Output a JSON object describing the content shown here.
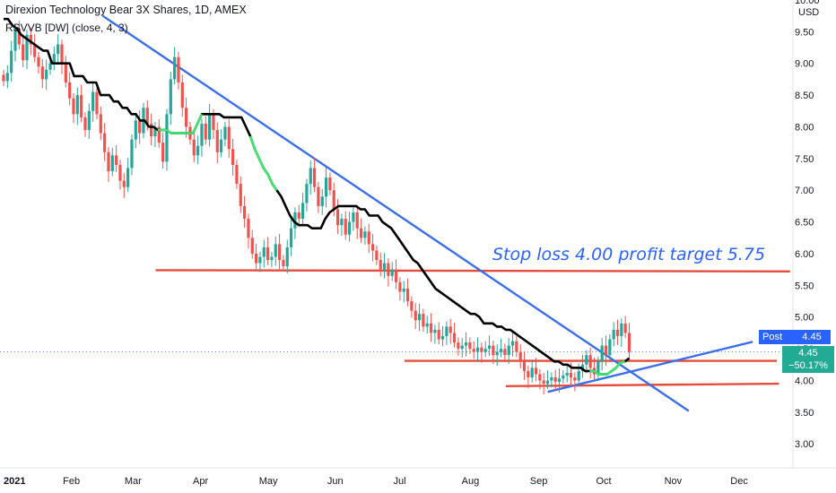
{
  "header": {
    "title": "Direxion Technology Bear 3X Shares, 1D, AMEX",
    "indicator": "RSVVB [DW] (close, 4, 3)",
    "currency_line1": "USD"
  },
  "annotation": "Stop loss 4.00 profit target 5.75",
  "badges": {
    "post_label": "Post",
    "post_value": "4.45",
    "last_value": "4.45",
    "last_change": "−50.17%"
  },
  "colors": {
    "up": "#26a69a",
    "down": "#ef5350",
    "trend_line": "#3a6ee8",
    "level_line": "#e54c3c",
    "indicator_main": "#000000",
    "indicator_bull": "#3ee66e",
    "accent": "#2962ff"
  },
  "chart_data": {
    "type": "candlestick",
    "title": "Direxion Technology Bear 3X Shares, 1D, AMEX",
    "ylim": [
      2.65,
      10.0
    ],
    "y_ticks": [
      "10.00",
      "9.50",
      "9.00",
      "8.50",
      "8.00",
      "7.50",
      "7.00",
      "6.50",
      "6.00",
      "5.50",
      "5.00",
      "4.50",
      "4.00",
      "3.50",
      "3.00"
    ],
    "x_ticks": [
      "2021",
      "Feb",
      "Mar",
      "Apr",
      "May",
      "Jun",
      "Jul",
      "Aug",
      "Sep",
      "Oct",
      "Nov",
      "Dec"
    ],
    "x_tick_days": [
      0,
      31,
      59,
      90,
      120,
      151,
      181,
      212,
      243,
      273,
      304,
      334
    ],
    "candles_close": [
      8.72,
      8.85,
      9.2,
      9.55,
      9.3,
      9.05,
      9.45,
      9.3,
      9.1,
      8.95,
      8.75,
      8.9,
      9.0,
      9.15,
      9.3,
      9.0,
      8.7,
      8.45,
      8.2,
      8.5,
      8.15,
      7.95,
      8.25,
      8.55,
      8.2,
      7.9,
      7.6,
      7.3,
      7.55,
      7.4,
      7.15,
      7.05,
      7.35,
      7.8,
      8.1,
      7.9,
      8.3,
      8.05,
      7.85,
      8.0,
      7.75,
      7.45,
      8.2,
      8.75,
      9.1,
      8.7,
      8.3,
      8.0,
      7.8,
      7.55,
      7.7,
      8.05,
      7.8,
      8.2,
      7.95,
      7.6,
      7.8,
      8.0,
      7.65,
      7.4,
      7.1,
      6.75,
      6.55,
      6.25,
      6.0,
      5.85,
      5.95,
      6.1,
      5.9,
      5.95,
      6.15,
      5.9,
      5.8,
      6.1,
      6.4,
      6.65,
      6.55,
      6.8,
      7.1,
      7.35,
      7.05,
      6.75,
      6.9,
      7.2,
      7.0,
      6.7,
      6.45,
      6.55,
      6.3,
      6.5,
      6.65,
      6.4,
      6.25,
      6.35,
      6.15,
      6.05,
      5.9,
      5.75,
      5.85,
      5.65,
      5.75,
      5.55,
      5.4,
      5.45,
      5.25,
      5.1,
      4.95,
      5.05,
      4.85,
      4.9,
      4.75,
      4.8,
      4.65,
      4.7,
      4.85,
      4.75,
      4.6,
      4.5,
      4.55,
      4.6,
      4.5,
      4.45,
      4.52,
      4.45,
      4.5,
      4.55,
      4.4,
      4.45,
      4.5,
      4.4,
      4.55,
      4.62,
      4.45,
      4.3,
      4.15,
      4.05,
      4.2,
      4.1,
      4.0,
      3.95,
      4.0,
      4.05,
      3.98,
      4.03,
      4.08,
      4.12,
      4.05,
      4.0,
      4.15,
      4.25,
      4.4,
      4.2,
      4.1,
      4.3,
      4.55,
      4.4,
      4.65,
      4.8,
      4.7,
      4.9,
      4.75,
      4.45
    ],
    "indicator_line": [
      9.7,
      9.7,
      9.6,
      9.55,
      9.45,
      9.4,
      9.35,
      9.3,
      9.25,
      9.2,
      9.2,
      9.0,
      9.0,
      9.0,
      9.0,
      9.0,
      8.8,
      8.8,
      8.8,
      8.7,
      8.7,
      8.7,
      8.5,
      8.5,
      8.5,
      8.4,
      8.4,
      8.3,
      8.3,
      8.2,
      8.2,
      8.1,
      8.1,
      8.0,
      8.0,
      7.95,
      7.95,
      7.95,
      7.9,
      7.9,
      7.9,
      7.9,
      7.9,
      7.9,
      8.05,
      8.2,
      8.2,
      8.2,
      8.2,
      8.2,
      8.15,
      8.15,
      8.15,
      8.15,
      8.15,
      8.0,
      7.85,
      7.65,
      7.5,
      7.35,
      7.25,
      7.1,
      7.0,
      6.9,
      6.75,
      6.6,
      6.5,
      6.45,
      6.45,
      6.45,
      6.4,
      6.4,
      6.4,
      6.55,
      6.65,
      6.7,
      6.75,
      6.75,
      6.75,
      6.75,
      6.75,
      6.7,
      6.7,
      6.6,
      6.6,
      6.6,
      6.5,
      6.45,
      6.4,
      6.3,
      6.2,
      6.1,
      6.0,
      5.9,
      5.85,
      5.75,
      5.65,
      5.55,
      5.45,
      5.4,
      5.35,
      5.3,
      5.25,
      5.2,
      5.15,
      5.1,
      5.05,
      5.05,
      5.0,
      4.9,
      4.9,
      4.9,
      4.85,
      4.85,
      4.8,
      4.8,
      4.75,
      4.7,
      4.65,
      4.6,
      4.55,
      4.5,
      4.45,
      4.4,
      4.35,
      4.3,
      4.3,
      4.25,
      4.25,
      4.2,
      4.2,
      4.2,
      4.15,
      4.15,
      4.15,
      4.1,
      4.1,
      4.1,
      4.15,
      4.2,
      4.28,
      4.3,
      4.35
    ]
  }
}
